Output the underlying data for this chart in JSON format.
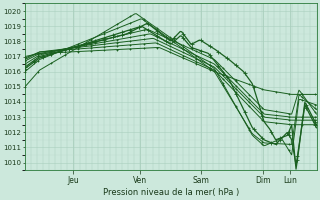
{
  "xlabel": "Pression niveau de la mer( hPa )",
  "bg_color": "#cce8dc",
  "grid_color_major": "#aacfbe",
  "grid_color_minor": "#bbdacc",
  "line_color": "#1a6020",
  "ylim": [
    1009.5,
    1020.5
  ],
  "xlim": [
    0,
    1
  ],
  "ytick_labels": [
    "1010",
    "1011",
    "1012",
    "1013",
    "1014",
    "1015",
    "1016",
    "1017",
    "1018",
    "1019",
    "1020"
  ],
  "ytick_vals": [
    1010,
    1011,
    1012,
    1013,
    1014,
    1015,
    1016,
    1017,
    1018,
    1019,
    1020
  ],
  "day_positions": [
    0.165,
    0.395,
    0.605,
    0.815,
    0.91
  ],
  "day_labels": [
    "Jeu",
    "Ven",
    "Sam",
    "Dim",
    "Lun"
  ],
  "figsize": [
    3.2,
    2.0
  ],
  "dpi": 100
}
